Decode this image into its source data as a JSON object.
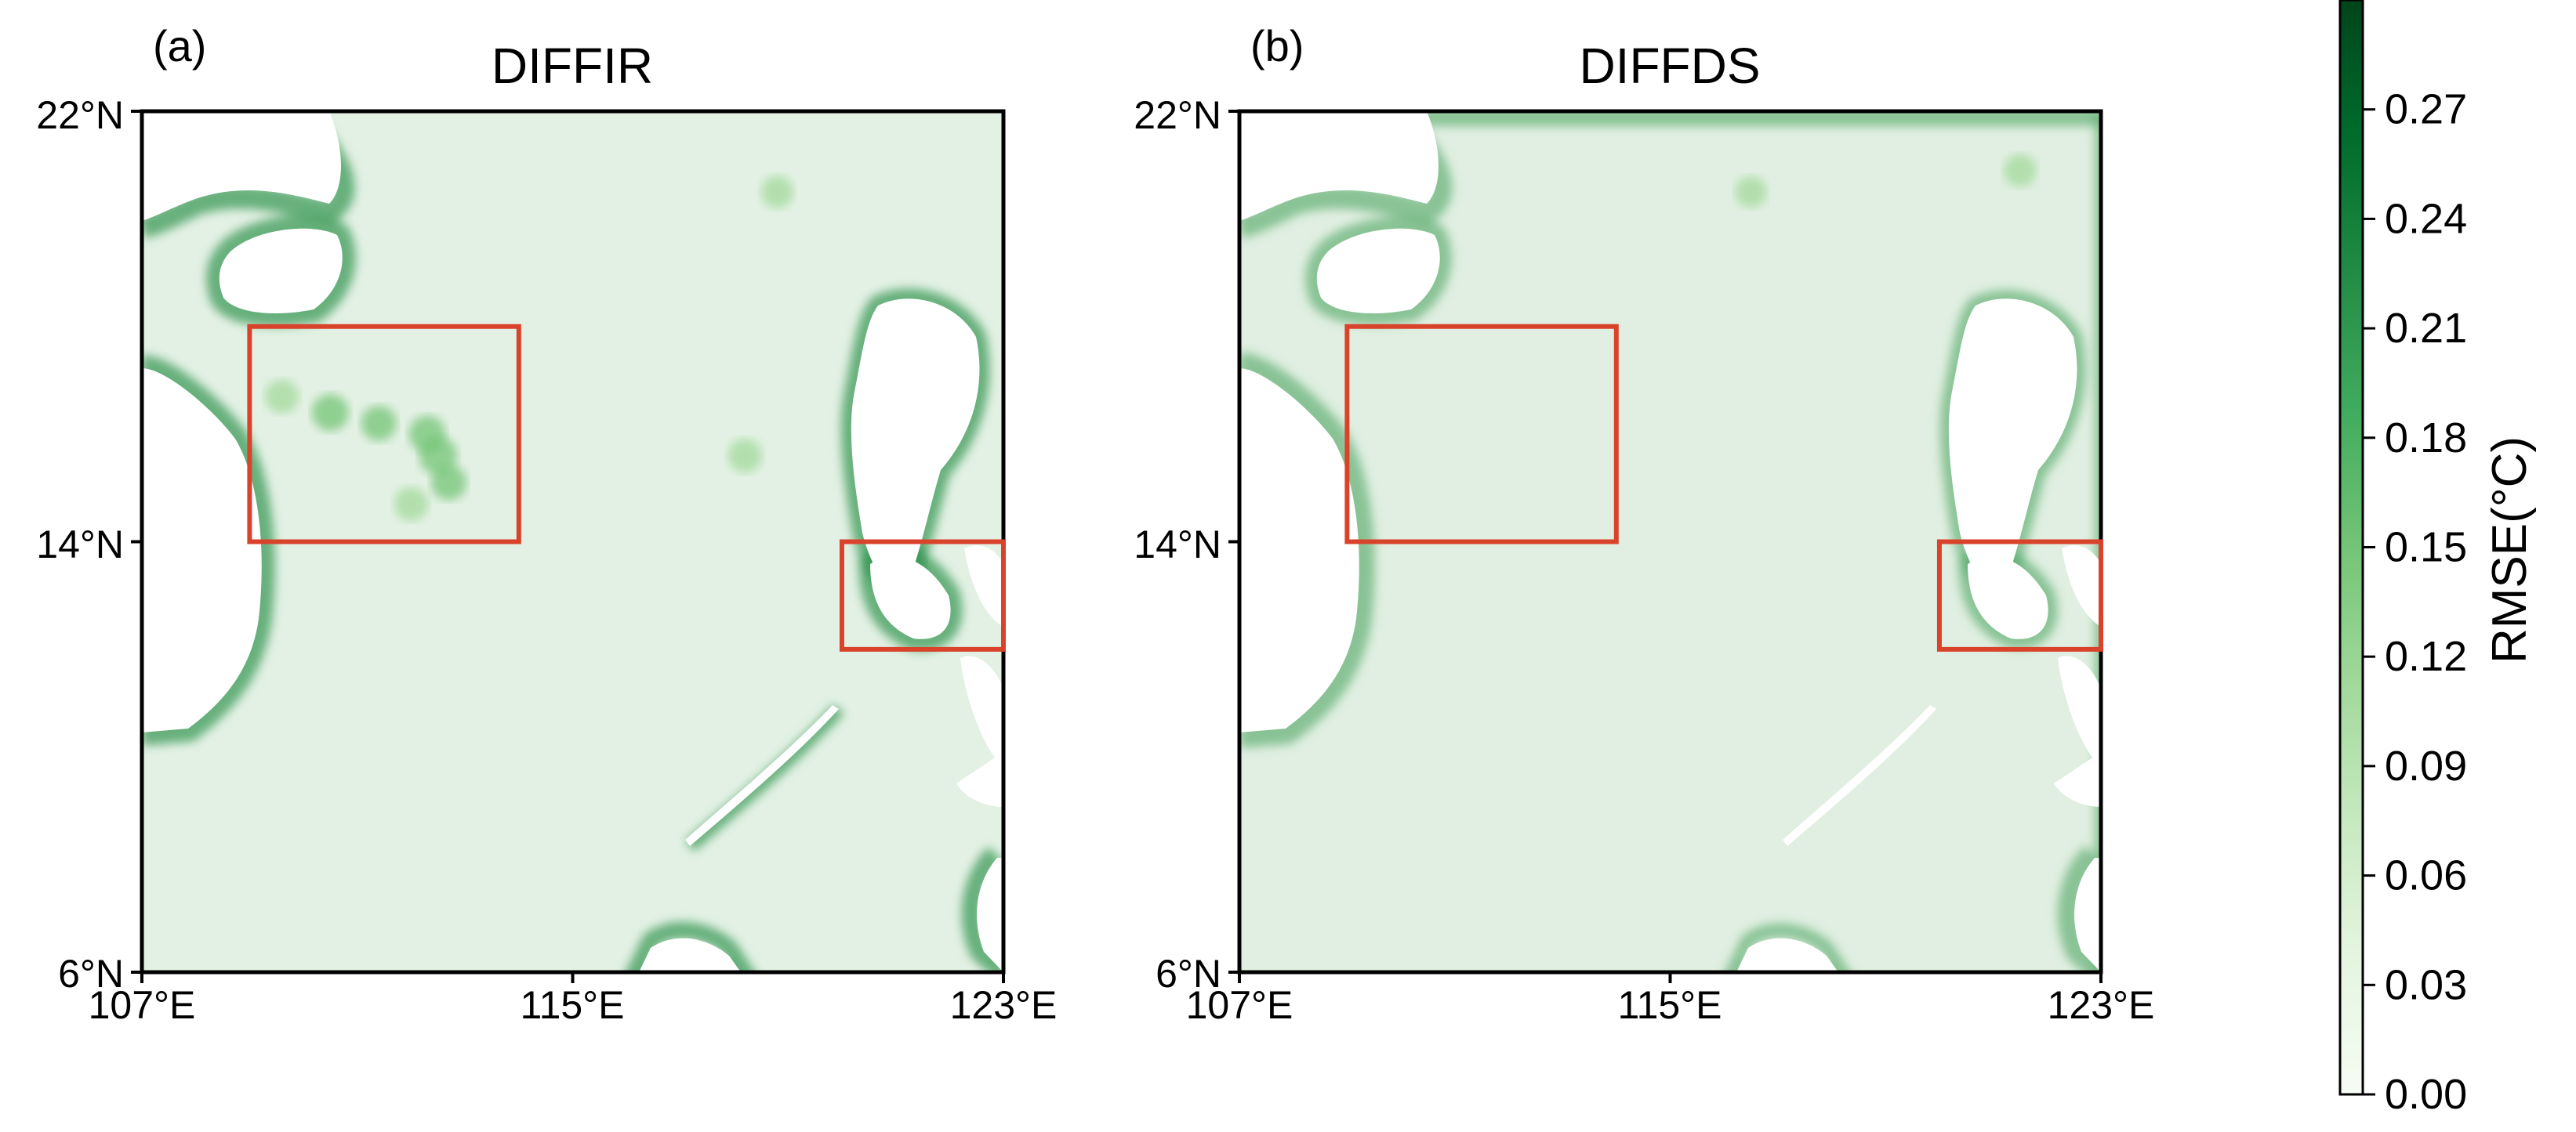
{
  "colors": {
    "colormap": [
      "#f7fcf5",
      "#e5f5e0",
      "#c7e9c0",
      "#a1d99b",
      "#74c476",
      "#41ab5d",
      "#238b45",
      "#006d2c",
      "#00441b"
    ],
    "box": "#d9432b",
    "land": "#ffffff",
    "frame": "#000000"
  },
  "chart_data": [
    {
      "type": "heatmap",
      "panel_label": "(a)",
      "title": "DIFFIR",
      "xlabel": "",
      "ylabel": "",
      "xlim": [
        107,
        123
      ],
      "ylim": [
        6,
        22
      ],
      "xticks": [
        "107°E",
        "115°E",
        "123°E"
      ],
      "yticks": [
        "6°N",
        "14°N",
        "22°N"
      ],
      "value_range": [
        0.0,
        0.3
      ],
      "typical_interior_rmse": 0.04,
      "typical_coastal_rmse": 0.2,
      "highlight_boxes": [
        {
          "lon": [
            109,
            114
          ],
          "lat": [
            14,
            18
          ]
        },
        {
          "lon": [
            120,
            123
          ],
          "lat": [
            12,
            14
          ]
        }
      ],
      "hotspots": [
        {
          "lon": 110.5,
          "lat": 16.4,
          "rmse": 0.15
        },
        {
          "lon": 111.4,
          "lat": 16.2,
          "rmse": 0.14
        },
        {
          "lon": 112.3,
          "lat": 16.0,
          "rmse": 0.15
        },
        {
          "lon": 112.5,
          "lat": 15.6,
          "rmse": 0.16
        },
        {
          "lon": 112.7,
          "lat": 15.1,
          "rmse": 0.14
        },
        {
          "lon": 112.0,
          "lat": 14.7,
          "rmse": 0.13
        },
        {
          "lon": 109.6,
          "lat": 16.7,
          "rmse": 0.13
        },
        {
          "lon": 118.2,
          "lat": 15.6,
          "rmse": 0.13
        },
        {
          "lon": 118.8,
          "lat": 20.5,
          "rmse": 0.12
        },
        {
          "lon": 121.0,
          "lat": 13.6,
          "rmse": 0.27
        }
      ]
    },
    {
      "type": "heatmap",
      "panel_label": "(b)",
      "title": "DIFFDS",
      "xlabel": "",
      "ylabel": "",
      "xlim": [
        107,
        123
      ],
      "ylim": [
        6,
        22
      ],
      "xticks": [
        "107°E",
        "115°E",
        "123°E"
      ],
      "yticks": [
        "6°N",
        "14°N",
        "22°N"
      ],
      "value_range": [
        0.0,
        0.3
      ],
      "typical_interior_rmse": 0.06,
      "typical_coastal_rmse": 0.16,
      "highlight_boxes": [
        {
          "lon": [
            109,
            114
          ],
          "lat": [
            14,
            18
          ]
        },
        {
          "lon": [
            120,
            123
          ],
          "lat": [
            12,
            14
          ]
        }
      ],
      "hotspots": [
        {
          "lon": 116.5,
          "lat": 20.5,
          "rmse": 0.11
        },
        {
          "lon": 121.5,
          "lat": 20.9,
          "rmse": 0.12
        }
      ]
    }
  ],
  "colorbar": {
    "label": "RMSE(°C)",
    "min": 0.0,
    "max": 0.3,
    "ticks": [
      0.0,
      0.03,
      0.06,
      0.09,
      0.12,
      0.15,
      0.18,
      0.21,
      0.24,
      0.27
    ],
    "tick_labels": [
      "0.00",
      "0.03",
      "0.06",
      "0.09",
      "0.12",
      "0.15",
      "0.18",
      "0.21",
      "0.24",
      "0.27"
    ]
  }
}
